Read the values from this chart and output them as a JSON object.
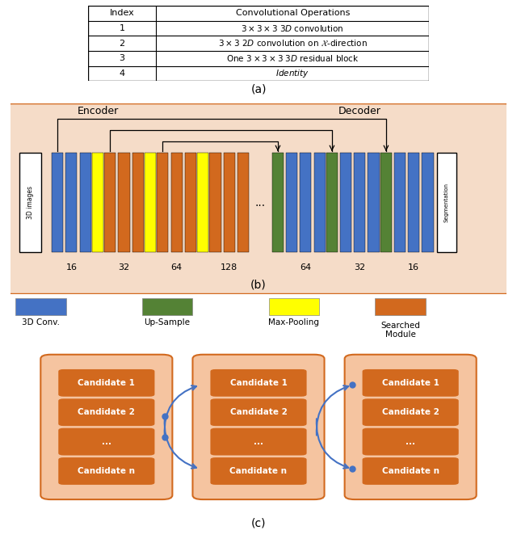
{
  "table_header": [
    "Index",
    "Convolutional Operations"
  ],
  "table_rows": [
    [
      "1",
      "3 × 3 × 3 3D convolution"
    ],
    [
      "2",
      "3 × 3 2D convolution on Χ-direction"
    ],
    [
      "3",
      "One 3 × 3 × 3 3D residual block"
    ],
    [
      "4",
      "Identity"
    ]
  ],
  "bg_color": "#f5dcc8",
  "orange_color": "#d2691e",
  "blue_color": "#4472c4",
  "green_color": "#548235",
  "yellow_color": "#ffff00",
  "arrow_blue": "#4472c4",
  "label_a": "(a)",
  "label_b": "(b)",
  "label_c": "(c)"
}
